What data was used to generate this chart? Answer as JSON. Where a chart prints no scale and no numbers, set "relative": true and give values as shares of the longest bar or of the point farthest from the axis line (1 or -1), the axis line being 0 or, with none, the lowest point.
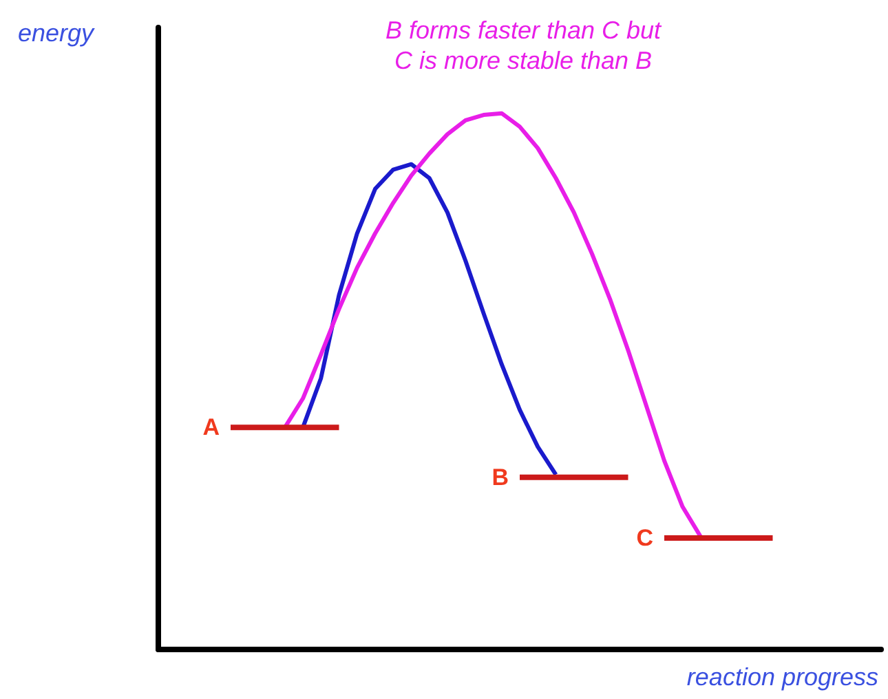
{
  "chart_data": {
    "type": "line",
    "relative": true,
    "title": "B forms faster than C but\nC is more stable than B",
    "xlabel": "reaction progress",
    "ylabel": "energy",
    "marker": "none",
    "line_style": "solid",
    "categories": [
      null,
      null,
      null,
      null,
      null,
      null,
      null,
      null,
      null,
      null,
      null,
      null,
      null,
      null,
      null,
      null,
      null,
      null,
      null,
      null,
      null,
      null,
      null,
      null,
      null,
      null,
      null,
      null,
      null,
      null,
      null,
      null,
      null,
      null,
      null,
      null,
      null,
      null,
      null,
      null,
      null
    ],
    "series": [
      {
        "color": "#1a1acc",
        "values": [
          null,
          null,
          null,
          null,
          null,
          null,
          null,
          null,
          0.414,
          0.506,
          0.661,
          0.776,
          0.859,
          0.895,
          0.905,
          0.879,
          0.815,
          0.725,
          0.627,
          0.532,
          0.447,
          0.378,
          0.326,
          null,
          null,
          null,
          null,
          null,
          null,
          null,
          null,
          null,
          null,
          null,
          null,
          null,
          null,
          null,
          null,
          null,
          null
        ]
      },
      {
        "color": "#e81ee8",
        "values": [
          null,
          null,
          null,
          null,
          null,
          null,
          null,
          0.414,
          0.468,
          0.55,
          0.635,
          0.712,
          0.776,
          0.833,
          0.884,
          0.925,
          0.961,
          0.987,
          0.997,
          1,
          0.975,
          0.935,
          0.879,
          0.815,
          0.738,
          0.653,
          0.558,
          0.455,
          0.352,
          0.267,
          0.211,
          null,
          null,
          null,
          null,
          null,
          null,
          null,
          null,
          null,
          null
        ]
      },
      {
        "name": "A",
        "color": "#cc1a1a",
        "values": [
          null,
          null,
          null,
          null,
          0.414,
          0.414,
          0.414,
          0.414,
          0.414,
          0.414,
          0.414,
          null,
          null,
          null,
          null,
          null,
          null,
          null,
          null,
          null,
          null,
          null,
          null,
          null,
          null,
          null,
          null,
          null,
          null,
          null,
          null,
          null,
          null,
          null,
          null,
          null,
          null,
          null,
          null,
          null,
          null
        ]
      },
      {
        "name": "B",
        "color": "#cc1a1a",
        "values": [
          null,
          null,
          null,
          null,
          null,
          null,
          null,
          null,
          null,
          null,
          null,
          null,
          null,
          null,
          null,
          null,
          null,
          null,
          null,
          null,
          0.321,
          0.321,
          0.321,
          0.321,
          0.321,
          0.321,
          0.321,
          null,
          null,
          null,
          null,
          null,
          null,
          null,
          null,
          null,
          null,
          null,
          null,
          null,
          null
        ]
      },
      {
        "name": "C",
        "color": "#cc1a1a",
        "values": [
          null,
          null,
          null,
          null,
          null,
          null,
          null,
          null,
          null,
          null,
          null,
          null,
          null,
          null,
          null,
          null,
          null,
          null,
          null,
          null,
          null,
          null,
          null,
          null,
          null,
          null,
          null,
          null,
          0.208,
          0.208,
          0.208,
          0.208,
          0.208,
          0.208,
          0.208,
          null,
          null,
          null,
          null,
          null,
          null
        ]
      }
    ]
  }
}
